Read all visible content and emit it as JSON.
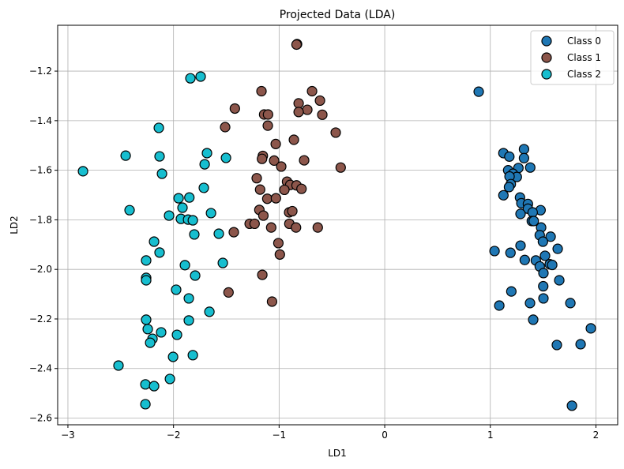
{
  "chart_data": {
    "type": "scatter",
    "title": "Projected Data (LDA)",
    "xlabel": "LD1",
    "ylabel": "LD2",
    "xlim": [
      -3.097,
      2.206
    ],
    "ylim": [
      -2.627,
      -1.015
    ],
    "xticks": [
      -3,
      -2,
      -1,
      0,
      1,
      2
    ],
    "yticks": [
      -1.2,
      -1.4,
      -1.6,
      -1.8,
      -2.0,
      -2.2,
      -2.4,
      -2.6
    ],
    "xtick_labels": [
      "−3",
      "−2",
      "−1",
      "0",
      "1",
      "2"
    ],
    "ytick_labels": [
      "−1.2",
      "−1.4",
      "−1.6",
      "−1.8",
      "−2.0",
      "−2.2",
      "−2.4",
      "−2.6"
    ],
    "grid": true,
    "legend_position": "top-right",
    "series": [
      {
        "name": "Class 0",
        "color": "#1f77b4",
        "points": [
          [
            0.89,
            -1.283
          ],
          [
            1.124,
            -1.531
          ],
          [
            1.18,
            -1.545
          ],
          [
            1.319,
            -1.515
          ],
          [
            1.319,
            -1.551
          ],
          [
            1.378,
            -1.589
          ],
          [
            1.266,
            -1.591
          ],
          [
            1.169,
            -1.6
          ],
          [
            1.214,
            -1.614
          ],
          [
            1.251,
            -1.627
          ],
          [
            1.182,
            -1.625
          ],
          [
            1.194,
            -1.656
          ],
          [
            1.177,
            -1.668
          ],
          [
            1.124,
            -1.701
          ],
          [
            1.281,
            -1.71
          ],
          [
            1.294,
            -1.733
          ],
          [
            1.356,
            -1.736
          ],
          [
            1.356,
            -1.755
          ],
          [
            1.476,
            -1.761
          ],
          [
            1.401,
            -1.77
          ],
          [
            1.286,
            -1.776
          ],
          [
            1.393,
            -1.805
          ],
          [
            1.411,
            -1.805
          ],
          [
            1.481,
            -1.831
          ],
          [
            1.468,
            -1.862
          ],
          [
            1.571,
            -1.868
          ],
          [
            1.498,
            -1.888
          ],
          [
            1.638,
            -1.917
          ],
          [
            1.04,
            -1.926
          ],
          [
            1.191,
            -1.933
          ],
          [
            1.286,
            -1.904
          ],
          [
            1.518,
            -1.945
          ],
          [
            1.326,
            -1.962
          ],
          [
            1.431,
            -1.964
          ],
          [
            1.468,
            -1.988
          ],
          [
            1.563,
            -1.979
          ],
          [
            1.586,
            -1.982
          ],
          [
            1.503,
            -2.015
          ],
          [
            1.653,
            -2.044
          ],
          [
            1.501,
            -2.068
          ],
          [
            1.199,
            -2.089
          ],
          [
            1.085,
            -2.146
          ],
          [
            1.376,
            -2.136
          ],
          [
            1.503,
            -2.117
          ],
          [
            1.758,
            -2.136
          ],
          [
            1.406,
            -2.203
          ],
          [
            1.952,
            -2.238
          ],
          [
            1.63,
            -2.305
          ],
          [
            1.855,
            -2.302
          ],
          [
            1.773,
            -2.55
          ]
        ]
      },
      {
        "name": "Class 1",
        "color": "#8c564b",
        "points": [
          [
            -0.83,
            -1.091
          ],
          [
            -0.835,
            -1.093
          ],
          [
            -1.167,
            -1.281
          ],
          [
            -0.688,
            -1.281
          ],
          [
            -0.613,
            -1.319
          ],
          [
            -0.815,
            -1.33
          ],
          [
            -1.419,
            -1.351
          ],
          [
            -0.733,
            -1.356
          ],
          [
            -1.142,
            -1.375
          ],
          [
            -1.105,
            -1.375
          ],
          [
            -0.815,
            -1.365
          ],
          [
            -0.591,
            -1.376
          ],
          [
            -1.511,
            -1.426
          ],
          [
            -1.107,
            -1.42
          ],
          [
            -0.464,
            -1.448
          ],
          [
            -0.86,
            -1.477
          ],
          [
            -1.032,
            -1.494
          ],
          [
            -1.154,
            -1.542
          ],
          [
            -1.162,
            -1.554
          ],
          [
            -1.047,
            -1.561
          ],
          [
            -0.98,
            -1.585
          ],
          [
            -0.763,
            -1.56
          ],
          [
            -0.417,
            -1.589
          ],
          [
            -1.212,
            -1.632
          ],
          [
            -0.925,
            -1.646
          ],
          [
            -0.895,
            -1.659
          ],
          [
            -0.835,
            -1.661
          ],
          [
            -0.788,
            -1.675
          ],
          [
            -0.95,
            -1.679
          ],
          [
            -1.18,
            -1.678
          ],
          [
            -1.112,
            -1.715
          ],
          [
            -1.03,
            -1.713
          ],
          [
            -1.187,
            -1.76
          ],
          [
            -1.149,
            -1.783
          ],
          [
            -0.905,
            -1.77
          ],
          [
            -0.875,
            -1.765
          ],
          [
            -1.279,
            -1.816
          ],
          [
            -1.232,
            -1.816
          ],
          [
            -1.075,
            -1.831
          ],
          [
            -0.903,
            -1.816
          ],
          [
            -0.84,
            -1.831
          ],
          [
            -0.634,
            -1.831
          ],
          [
            -1.429,
            -1.85
          ],
          [
            -1.007,
            -1.894
          ],
          [
            -0.993,
            -1.94
          ],
          [
            -1.159,
            -2.022
          ],
          [
            -1.479,
            -2.093
          ],
          [
            -1.067,
            -2.13
          ]
        ]
      },
      {
        "name": "Class 2",
        "color": "#17becf",
        "points": [
          [
            -2.857,
            -1.604
          ],
          [
            -2.453,
            -1.541
          ],
          [
            -2.416,
            -1.761
          ],
          [
            -2.139,
            -1.429
          ],
          [
            -2.132,
            -1.544
          ],
          [
            -2.109,
            -1.614
          ],
          [
            -1.84,
            -1.229
          ],
          [
            -1.743,
            -1.222
          ],
          [
            -2.042,
            -1.783
          ],
          [
            -1.952,
            -1.713
          ],
          [
            -1.915,
            -1.751
          ],
          [
            -1.93,
            -1.796
          ],
          [
            -1.862,
            -1.799
          ],
          [
            -1.817,
            -1.802
          ],
          [
            -1.683,
            -1.531
          ],
          [
            -1.705,
            -1.576
          ],
          [
            -1.713,
            -1.671
          ],
          [
            -1.503,
            -1.55
          ],
          [
            -1.645,
            -1.773
          ],
          [
            -1.803,
            -1.859
          ],
          [
            -1.571,
            -1.856
          ],
          [
            -2.184,
            -1.888
          ],
          [
            -2.132,
            -1.932
          ],
          [
            -1.892,
            -1.983
          ],
          [
            -1.533,
            -1.974
          ],
          [
            -2.259,
            -1.964
          ],
          [
            -2.259,
            -2.034
          ],
          [
            -2.259,
            -2.044
          ],
          [
            -1.795,
            -2.025
          ],
          [
            -1.975,
            -2.082
          ],
          [
            -1.855,
            -2.117
          ],
          [
            -1.66,
            -2.171
          ],
          [
            -1.855,
            -2.206
          ],
          [
            -2.259,
            -2.203
          ],
          [
            -2.244,
            -2.241
          ],
          [
            -2.117,
            -2.254
          ],
          [
            -2.199,
            -2.28
          ],
          [
            -2.221,
            -2.296
          ],
          [
            -1.967,
            -2.264
          ],
          [
            -2.004,
            -2.353
          ],
          [
            -1.817,
            -2.346
          ],
          [
            -2.521,
            -2.388
          ],
          [
            -2.266,
            -2.464
          ],
          [
            -2.184,
            -2.471
          ],
          [
            -2.034,
            -2.442
          ],
          [
            -2.266,
            -2.544
          ],
          [
            -1.85,
            -1.71
          ]
        ]
      }
    ]
  }
}
